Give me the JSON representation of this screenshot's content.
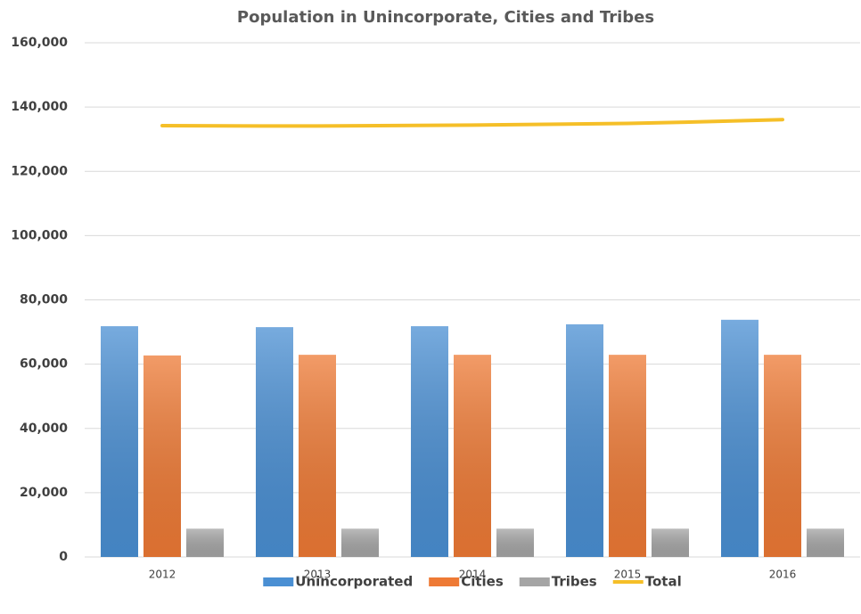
{
  "chart_data": {
    "type": "bar-line",
    "title": "Population in Unincorporate, Cities and Tribes",
    "categories": [
      "2012",
      "2013",
      "2014",
      "2015",
      "2016"
    ],
    "series": [
      {
        "name": "Unincorporated",
        "color": "#4a8fd3",
        "type": "bar",
        "values": [
          71800,
          71500,
          71800,
          72400,
          73800
        ]
      },
      {
        "name": "Cities",
        "color": "#ee7a35",
        "type": "bar",
        "values": [
          62700,
          62900,
          62900,
          62900,
          62900
        ]
      },
      {
        "name": "Tribes",
        "color": "#a5a5a5",
        "type": "bar",
        "values": [
          8800,
          8800,
          8800,
          8800,
          8800
        ]
      },
      {
        "name": "Total",
        "color": "#f5bf28",
        "type": "line",
        "values": [
          134200,
          134100,
          134400,
          134900,
          136100
        ]
      }
    ],
    "ylim": [
      0,
      160000
    ],
    "yticks": [
      {
        "value": 0,
        "label": "0"
      },
      {
        "value": 20000,
        "label": "20,000"
      },
      {
        "value": 40000,
        "label": "40,000"
      },
      {
        "value": 60000,
        "label": "60,000"
      },
      {
        "value": 80000,
        "label": "80,000"
      },
      {
        "value": 100000,
        "label": "100,000"
      },
      {
        "value": 120000,
        "label": "120,000"
      },
      {
        "value": 140000,
        "label": "140,000"
      },
      {
        "value": 160000,
        "label": "160,000"
      }
    ],
    "grid": true,
    "legend": "bottom"
  }
}
